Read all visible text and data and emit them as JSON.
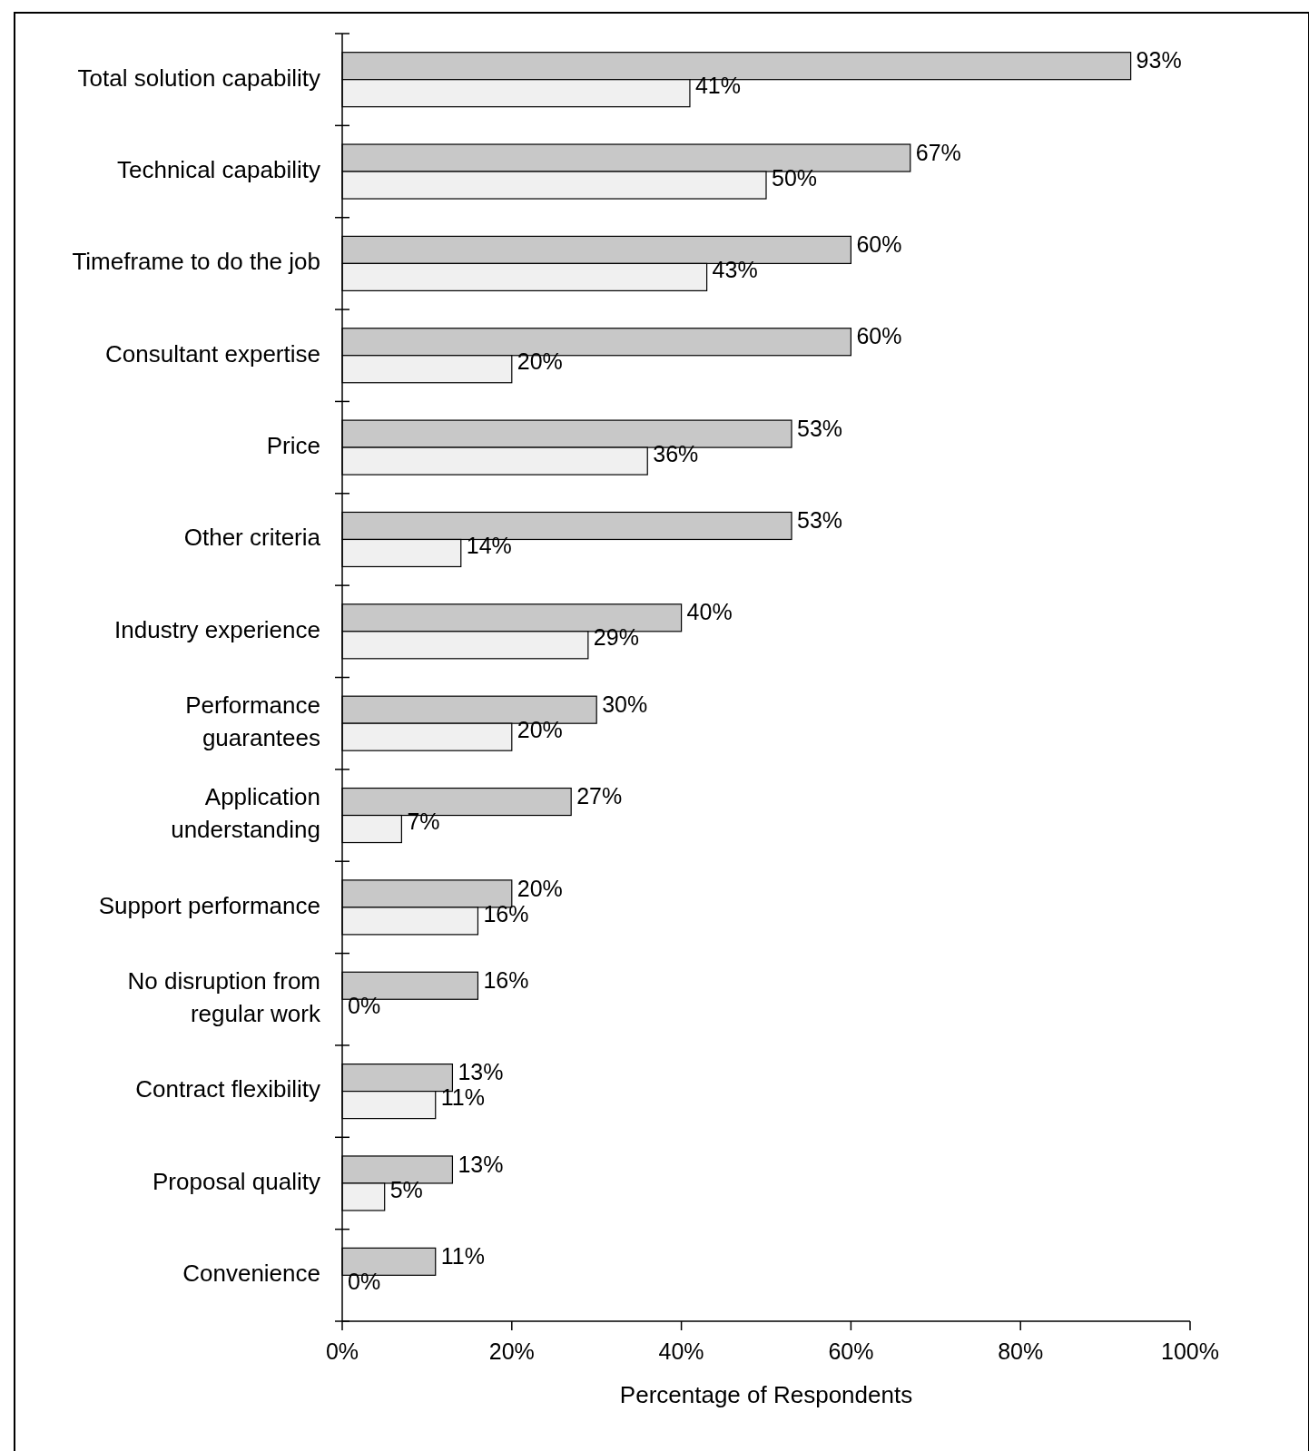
{
  "chart_data": {
    "type": "bar",
    "orientation": "horizontal",
    "xlabel": "Percentage of Respondents",
    "categories": [
      "Total solution capability",
      "Technical capability",
      "Timeframe to do the job",
      "Consultant expertise",
      "Price",
      "Other criteria",
      "Industry experience",
      "Performance\nguarantees",
      "Application\nunderstanding",
      "Support performance",
      "No disruption from\nregular work",
      "Contract flexibility",
      "Proposal quality",
      "Convenience"
    ],
    "series": [
      {
        "color": "#c8c8c8",
        "values": [
          93,
          67,
          60,
          60,
          53,
          53,
          40,
          30,
          27,
          20,
          16,
          13,
          13,
          11
        ],
        "value_labels": [
          "93%",
          "67%",
          "60%",
          "60%",
          "53%",
          "53%",
          "40%",
          "30%",
          "27%",
          "20%",
          "16%",
          "13%",
          "13%",
          "11%"
        ]
      },
      {
        "color": "#f0f0f0",
        "values": [
          41,
          50,
          43,
          20,
          36,
          14,
          29,
          20,
          7,
          16,
          0,
          11,
          5,
          0
        ],
        "value_labels": [
          "41%",
          "50%",
          "43%",
          "20%",
          "36%",
          "14%",
          "29%",
          "20%",
          "7%",
          "16%",
          "0%",
          "11%",
          "5%",
          "0%"
        ]
      }
    ],
    "xlim": [
      0,
      100
    ],
    "xticks": [
      {
        "value": 0,
        "label": "0%"
      },
      {
        "value": 20,
        "label": "20%"
      },
      {
        "value": 40,
        "label": "40%"
      },
      {
        "value": 60,
        "label": "60%"
      },
      {
        "value": 80,
        "label": "80%"
      },
      {
        "value": 100,
        "label": "100%"
      }
    ]
  }
}
